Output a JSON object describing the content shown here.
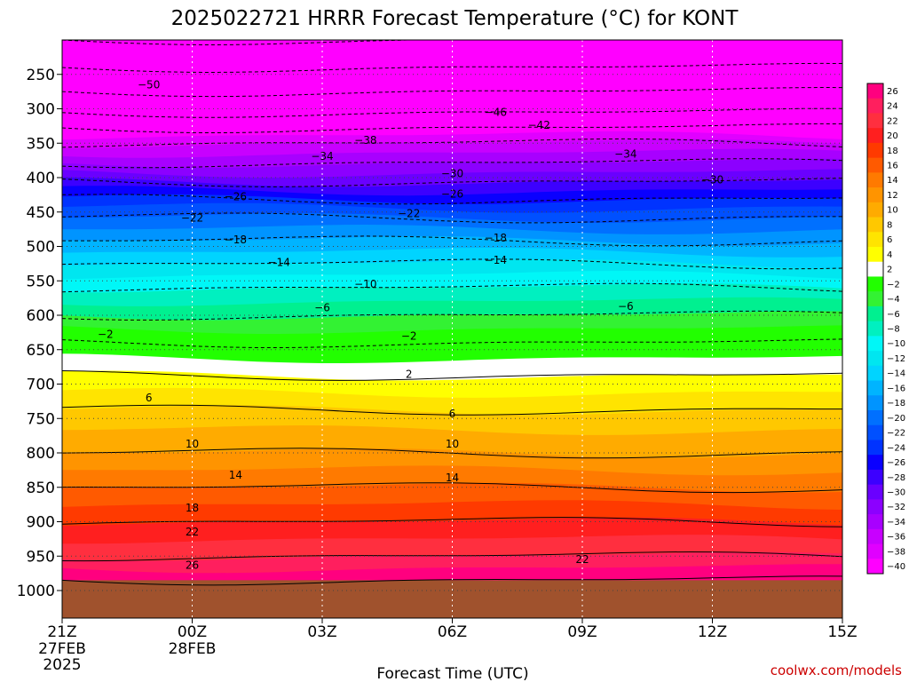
{
  "chart_data": {
    "type": "heatmap",
    "title": "2025022721 HRRR Forecast Temperature (°C) for KONT",
    "xlabel": "Forecast Time (UTC)",
    "ylabel": "",
    "x_ticks": [
      {
        "hour": 0,
        "label": "21Z",
        "sub1": "27FEB",
        "sub2": "2025"
      },
      {
        "hour": 3,
        "label": "00Z",
        "sub1": "28FEB",
        "sub2": ""
      },
      {
        "hour": 6,
        "label": "03Z",
        "sub1": "",
        "sub2": ""
      },
      {
        "hour": 9,
        "label": "06Z",
        "sub1": "",
        "sub2": ""
      },
      {
        "hour": 12,
        "label": "09Z",
        "sub1": "",
        "sub2": ""
      },
      {
        "hour": 15,
        "label": "12Z",
        "sub1": "",
        "sub2": ""
      },
      {
        "hour": 18,
        "label": "15Z",
        "sub1": "",
        "sub2": ""
      }
    ],
    "x_range_hours": [
      0,
      18
    ],
    "y_ticks": [
      250,
      300,
      350,
      400,
      450,
      500,
      550,
      600,
      650,
      700,
      750,
      800,
      850,
      900,
      950,
      1000
    ],
    "y_range_hPa": [
      200,
      1040
    ],
    "ground_pressure_hPa": 985,
    "ground_color": "#a0522d",
    "colorbar_levels": [
      26,
      24,
      22,
      20,
      18,
      16,
      14,
      12,
      10,
      8,
      6,
      4,
      2,
      -2,
      -4,
      -6,
      -8,
      -10,
      -12,
      -14,
      -16,
      -18,
      -20,
      -22,
      -24,
      -26,
      -28,
      -30,
      -32,
      -34,
      -36,
      -38,
      -40
    ],
    "colorbar_colors": [
      "#ff007f",
      "#ff1f5e",
      "#ff2f3f",
      "#ff1f1f",
      "#ff3a00",
      "#ff5a00",
      "#ff7a00",
      "#ff9400",
      "#ffab00",
      "#ffc800",
      "#ffe400",
      "#ffff00",
      "#ffffff",
      "#22ff00",
      "#33f233",
      "#00f090",
      "#00f0c0",
      "#00f7f7",
      "#00e6f0",
      "#00d4ff",
      "#00b4ff",
      "#0094ff",
      "#0070ff",
      "#0050ff",
      "#0033ff",
      "#0a00ff",
      "#3c00ff",
      "#6a00ff",
      "#8c00ff",
      "#a800ff",
      "#c800ff",
      "#e000ff",
      "#ff00ff"
    ],
    "isotherm_profile": [
      {
        "p": 200,
        "t": -58
      },
      {
        "p": 250,
        "t": -53
      },
      {
        "p": 300,
        "t": -47
      },
      {
        "p": 350,
        "t": -38
      },
      {
        "p": 400,
        "t": -31
      },
      {
        "p": 450,
        "t": -23
      },
      {
        "p": 500,
        "t": -17
      },
      {
        "p": 550,
        "t": -11
      },
      {
        "p": 600,
        "t": -6
      },
      {
        "p": 650,
        "t": -1
      },
      {
        "p": 700,
        "t": 3
      },
      {
        "p": 750,
        "t": 7
      },
      {
        "p": 800,
        "t": 10
      },
      {
        "p": 850,
        "t": 14
      },
      {
        "p": 900,
        "t": 18
      },
      {
        "p": 950,
        "t": 22
      },
      {
        "p": 985,
        "t": 26
      }
    ],
    "contour_labels": [
      {
        "value": -50,
        "hour": 2.0,
        "p": 265
      },
      {
        "value": -46,
        "hour": 10.0,
        "p": 305
      },
      {
        "value": -42,
        "hour": 11.0,
        "p": 324
      },
      {
        "value": -38,
        "hour": 7.0,
        "p": 346
      },
      {
        "value": -34,
        "hour": 6.0,
        "p": 369
      },
      {
        "value": -34,
        "hour": 13.0,
        "p": 366
      },
      {
        "value": -30,
        "hour": 9.0,
        "p": 394
      },
      {
        "value": -30,
        "hour": 15.0,
        "p": 403
      },
      {
        "value": -26,
        "hour": 4.0,
        "p": 428
      },
      {
        "value": -26,
        "hour": 9.0,
        "p": 424
      },
      {
        "value": -22,
        "hour": 3.0,
        "p": 459
      },
      {
        "value": -22,
        "hour": 8.0,
        "p": 452
      },
      {
        "value": -18,
        "hour": 4.0,
        "p": 490
      },
      {
        "value": -18,
        "hour": 10.0,
        "p": 488
      },
      {
        "value": -14,
        "hour": 5.0,
        "p": 523
      },
      {
        "value": -14,
        "hour": 10.0,
        "p": 520
      },
      {
        "value": -10,
        "hour": 7.0,
        "p": 555
      },
      {
        "value": -6,
        "hour": 6.0,
        "p": 589
      },
      {
        "value": -6,
        "hour": 13.0,
        "p": 587
      },
      {
        "value": -2,
        "hour": 1.0,
        "p": 628
      },
      {
        "value": -2,
        "hour": 8.0,
        "p": 630
      },
      {
        "value": 2,
        "hour": 8.0,
        "p": 686
      },
      {
        "value": 6,
        "hour": 2.0,
        "p": 720
      },
      {
        "value": 6,
        "hour": 9.0,
        "p": 743
      },
      {
        "value": 10,
        "hour": 3.0,
        "p": 787
      },
      {
        "value": 10,
        "hour": 9.0,
        "p": 787
      },
      {
        "value": 14,
        "hour": 4.0,
        "p": 832
      },
      {
        "value": 14,
        "hour": 9.0,
        "p": 836
      },
      {
        "value": 18,
        "hour": 3.0,
        "p": 880
      },
      {
        "value": 22,
        "hour": 3.0,
        "p": 915
      },
      {
        "value": 22,
        "hour": 12.0,
        "p": 955
      },
      {
        "value": 26,
        "hour": 3.0,
        "p": 963
      }
    ]
  },
  "credit": "coolwx.com/models"
}
